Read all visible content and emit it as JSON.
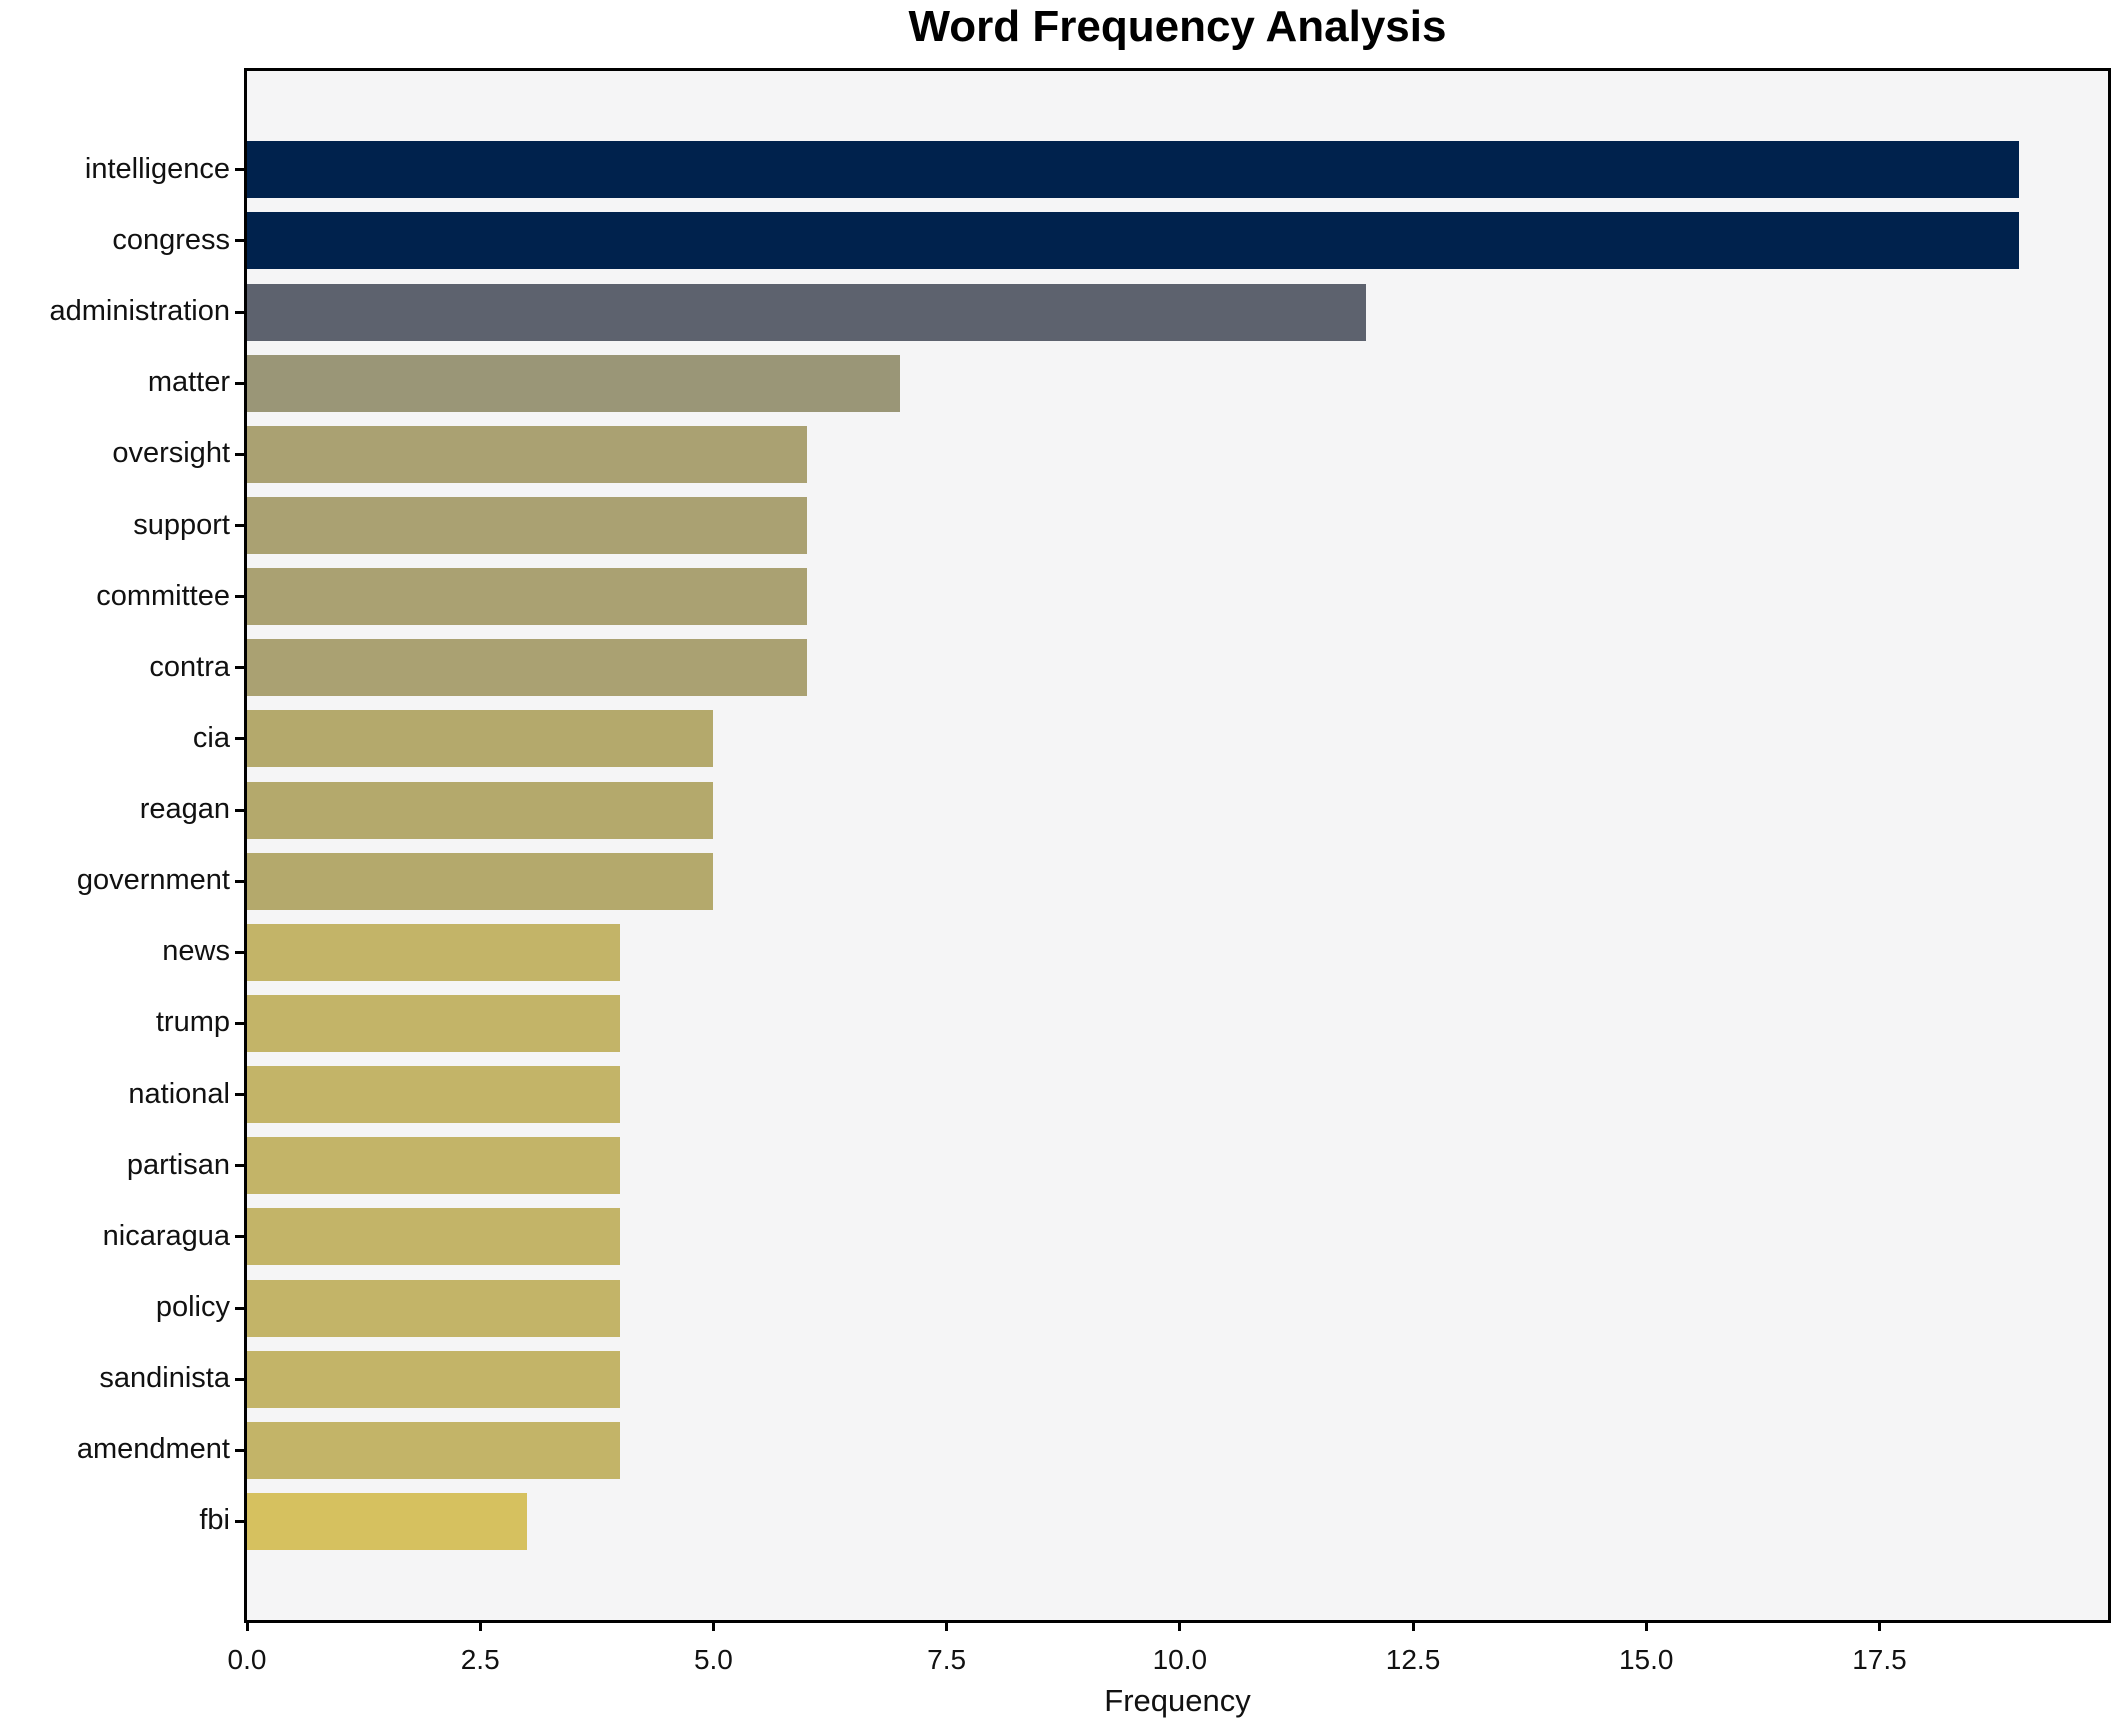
{
  "chart_data": {
    "type": "bar",
    "orientation": "horizontal",
    "title": "Word Frequency Analysis",
    "xlabel": "Frequency",
    "ylabel": "",
    "xlim": [
      0,
      19.95
    ],
    "xticks": [
      0.0,
      2.5,
      5.0,
      7.5,
      10.0,
      12.5,
      15.0,
      17.5
    ],
    "grid": false,
    "legend": null,
    "categories": [
      "intelligence",
      "congress",
      "administration",
      "matter",
      "oversight",
      "support",
      "committee",
      "contra",
      "cia",
      "reagan",
      "government",
      "news",
      "trump",
      "national",
      "partisan",
      "nicaragua",
      "policy",
      "sandinista",
      "amendment",
      "fbi"
    ],
    "values": [
      19,
      19,
      12,
      7,
      6,
      6,
      6,
      6,
      5,
      5,
      5,
      4,
      4,
      4,
      4,
      4,
      4,
      4,
      4,
      3
    ],
    "bar_colors": [
      "#00224d",
      "#00224d",
      "#5d626e",
      "#9a9677",
      "#aaa172",
      "#aaa172",
      "#aaa172",
      "#aaa172",
      "#b4a96c",
      "#b4a96c",
      "#b4a96c",
      "#c3b468",
      "#c3b468",
      "#c3b468",
      "#c3b468",
      "#c3b468",
      "#c3b468",
      "#c3b468",
      "#c3b468",
      "#d6c15f"
    ],
    "colors": {
      "plot_background": "#f5f5f6",
      "figure_background": "#ffffff",
      "spine": "#000000",
      "text": "#111111"
    }
  }
}
